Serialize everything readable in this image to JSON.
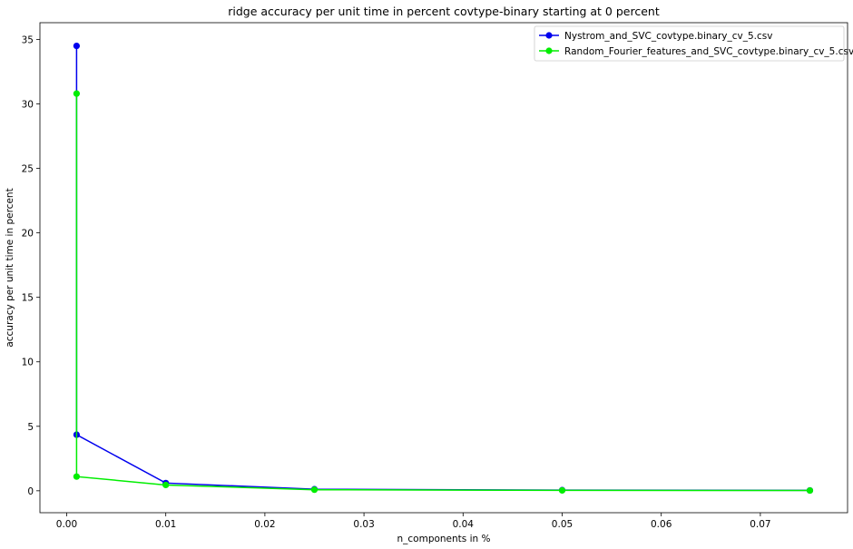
{
  "chart_data": {
    "type": "line",
    "title": "ridge accuracy per unit time in percent covtype-binary starting at 0 percent",
    "xlabel": "n_components in %",
    "ylabel": "accuracy per unit time in percent",
    "xlim": [
      -0.0027,
      0.0788
    ],
    "ylim": [
      -1.7,
      36.3
    ],
    "xticks": [
      0.0,
      0.01,
      0.02,
      0.03,
      0.04,
      0.05,
      0.06,
      0.07
    ],
    "xtick_labels": [
      "0.00",
      "0.01",
      "0.02",
      "0.03",
      "0.04",
      "0.05",
      "0.06",
      "0.07"
    ],
    "yticks": [
      0,
      5,
      10,
      15,
      20,
      25,
      30,
      35
    ],
    "ytick_labels": [
      "0",
      "5",
      "10",
      "15",
      "20",
      "25",
      "30",
      "35"
    ],
    "grid": false,
    "legend_position": "top-right",
    "series": [
      {
        "name": "Nystrom_and_SVC_covtype.binary_cv_5.csv",
        "color": "#0000ee",
        "marker": "circle",
        "x": [
          0.001,
          0.001,
          0.01,
          0.025,
          0.05,
          0.075
        ],
        "y": [
          34.5,
          4.35,
          0.6,
          0.12,
          0.05,
          0.03
        ]
      },
      {
        "name": "Random_Fourier_features_and_SVC_covtype.binary_cv_5.csv",
        "color": "#00ee00",
        "marker": "circle",
        "x": [
          0.001,
          0.001,
          0.01,
          0.025,
          0.05,
          0.075
        ],
        "y": [
          30.8,
          1.1,
          0.45,
          0.08,
          0.03,
          0.02
        ]
      }
    ]
  }
}
